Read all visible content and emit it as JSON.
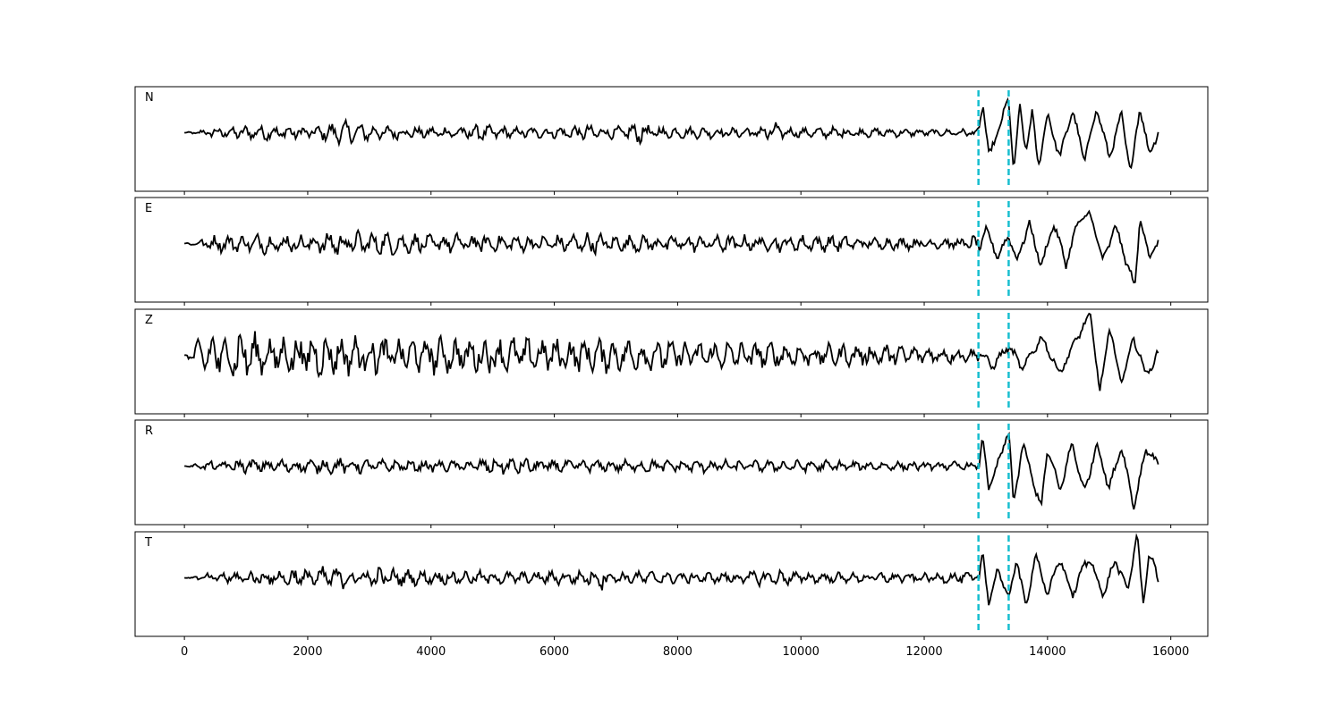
{
  "chart_data": {
    "type": "line",
    "xlim": [
      -800,
      16600
    ],
    "x_ticks": [
      0,
      2000,
      4000,
      6000,
      8000,
      10000,
      12000,
      14000,
      16000
    ],
    "x_tick_labels": [
      "0",
      "2000",
      "4000",
      "6000",
      "8000",
      "10000",
      "12000",
      "14000",
      "16000"
    ],
    "n_samples": 15800,
    "grid": false,
    "y_ticks_shown": false,
    "line_color": "#000000",
    "pick_color": "#17becf",
    "picks": [
      12880,
      13370
    ],
    "panels": [
      {
        "label": "N",
        "series": [
          {
            "x": 0,
            "y": 0.0
          },
          {
            "x": 500,
            "y": 0.1
          },
          {
            "x": 1000,
            "y": -0.12
          },
          {
            "x": 1500,
            "y": 0.15
          },
          {
            "x": 2000,
            "y": -0.1
          },
          {
            "x": 2600,
            "y": 0.2
          },
          {
            "x": 3000,
            "y": -0.15
          },
          {
            "x": 3500,
            "y": 0.12
          },
          {
            "x": 4000,
            "y": -0.1
          },
          {
            "x": 4700,
            "y": 0.15
          },
          {
            "x": 5000,
            "y": -0.12
          },
          {
            "x": 5500,
            "y": 0.1
          },
          {
            "x": 6000,
            "y": -0.1
          },
          {
            "x": 6500,
            "y": 0.15
          },
          {
            "x": 7000,
            "y": -0.1
          },
          {
            "x": 7400,
            "y": 0.2
          },
          {
            "x": 7500,
            "y": -0.15
          },
          {
            "x": 8000,
            "y": 0.1
          },
          {
            "x": 8500,
            "y": -0.1
          },
          {
            "x": 9000,
            "y": 0.08
          },
          {
            "x": 9600,
            "y": 0.2
          },
          {
            "x": 9700,
            "y": -0.1
          },
          {
            "x": 10000,
            "y": 0.08
          },
          {
            "x": 10500,
            "y": -0.1
          },
          {
            "x": 11000,
            "y": 0.08
          },
          {
            "x": 11500,
            "y": -0.08
          },
          {
            "x": 12000,
            "y": 0.06
          },
          {
            "x": 12500,
            "y": -0.06
          },
          {
            "x": 12880,
            "y": -0.08
          },
          {
            "x": 12950,
            "y": 0.7
          },
          {
            "x": 13050,
            "y": -0.55
          },
          {
            "x": 13200,
            "y": 0.05
          },
          {
            "x": 13370,
            "y": 0.75
          },
          {
            "x": 13450,
            "y": -0.85
          },
          {
            "x": 13550,
            "y": 0.55
          },
          {
            "x": 13650,
            "y": -0.4
          },
          {
            "x": 13750,
            "y": 0.45
          },
          {
            "x": 13850,
            "y": -0.75
          },
          {
            "x": 14000,
            "y": 0.4
          },
          {
            "x": 14200,
            "y": -0.55
          },
          {
            "x": 14400,
            "y": 0.5
          },
          {
            "x": 14600,
            "y": -0.6
          },
          {
            "x": 14800,
            "y": 0.55
          },
          {
            "x": 15000,
            "y": -0.55
          },
          {
            "x": 15200,
            "y": 0.4
          },
          {
            "x": 15350,
            "y": -0.9
          },
          {
            "x": 15500,
            "y": 0.6
          },
          {
            "x": 15650,
            "y": -0.5
          },
          {
            "x": 15800,
            "y": 0.05
          }
        ]
      },
      {
        "label": "E",
        "series": [
          {
            "x": 0,
            "y": 0.0
          },
          {
            "x": 500,
            "y": 0.15
          },
          {
            "x": 1000,
            "y": -0.15
          },
          {
            "x": 1500,
            "y": 0.2
          },
          {
            "x": 2000,
            "y": -0.15
          },
          {
            "x": 2500,
            "y": 0.25
          },
          {
            "x": 3000,
            "y": -0.2
          },
          {
            "x": 3500,
            "y": 0.2
          },
          {
            "x": 4000,
            "y": -0.15
          },
          {
            "x": 4500,
            "y": 0.2
          },
          {
            "x": 5000,
            "y": -0.15
          },
          {
            "x": 5500,
            "y": 0.15
          },
          {
            "x": 6000,
            "y": -0.15
          },
          {
            "x": 6500,
            "y": 0.2
          },
          {
            "x": 7000,
            "y": -0.15
          },
          {
            "x": 7500,
            "y": 0.15
          },
          {
            "x": 8000,
            "y": -0.15
          },
          {
            "x": 8500,
            "y": 0.15
          },
          {
            "x": 9000,
            "y": -0.15
          },
          {
            "x": 9500,
            "y": 0.15
          },
          {
            "x": 10000,
            "y": -0.15
          },
          {
            "x": 10500,
            "y": 0.15
          },
          {
            "x": 11000,
            "y": -0.1
          },
          {
            "x": 11500,
            "y": 0.12
          },
          {
            "x": 12000,
            "y": -0.1
          },
          {
            "x": 12500,
            "y": 0.1
          },
          {
            "x": 12880,
            "y": -0.15
          },
          {
            "x": 13000,
            "y": 0.3
          },
          {
            "x": 13200,
            "y": -0.3
          },
          {
            "x": 13370,
            "y": 0.2
          },
          {
            "x": 13500,
            "y": -0.4
          },
          {
            "x": 13700,
            "y": 0.45
          },
          {
            "x": 13900,
            "y": -0.5
          },
          {
            "x": 14100,
            "y": 0.45
          },
          {
            "x": 14300,
            "y": -0.45
          },
          {
            "x": 14500,
            "y": 0.5
          },
          {
            "x": 14700,
            "y": 0.65
          },
          {
            "x": 14900,
            "y": -0.4
          },
          {
            "x": 15100,
            "y": 0.4
          },
          {
            "x": 15300,
            "y": -0.5
          },
          {
            "x": 15420,
            "y": -0.95
          },
          {
            "x": 15500,
            "y": 0.6
          },
          {
            "x": 15650,
            "y": -0.3
          },
          {
            "x": 15800,
            "y": 0.05
          }
        ]
      },
      {
        "label": "Z",
        "series": [
          {
            "x": 0,
            "y": 0.0
          },
          {
            "x": 300,
            "y": 0.35
          },
          {
            "x": 500,
            "y": -0.45
          },
          {
            "x": 700,
            "y": 0.4
          },
          {
            "x": 900,
            "y": -0.55
          },
          {
            "x": 1200,
            "y": 0.35
          },
          {
            "x": 1500,
            "y": -0.35
          },
          {
            "x": 2000,
            "y": 0.4
          },
          {
            "x": 2500,
            "y": -0.35
          },
          {
            "x": 3000,
            "y": 0.35
          },
          {
            "x": 3500,
            "y": -0.3
          },
          {
            "x": 4000,
            "y": 0.35
          },
          {
            "x": 4500,
            "y": -0.3
          },
          {
            "x": 5000,
            "y": 0.35
          },
          {
            "x": 5500,
            "y": -0.3
          },
          {
            "x": 6000,
            "y": 0.3
          },
          {
            "x": 6500,
            "y": -0.3
          },
          {
            "x": 7000,
            "y": 0.3
          },
          {
            "x": 7500,
            "y": -0.3
          },
          {
            "x": 8000,
            "y": 0.25
          },
          {
            "x": 8500,
            "y": -0.25
          },
          {
            "x": 9000,
            "y": 0.25
          },
          {
            "x": 9500,
            "y": -0.25
          },
          {
            "x": 10000,
            "y": 0.2
          },
          {
            "x": 10500,
            "y": -0.2
          },
          {
            "x": 11000,
            "y": 0.2
          },
          {
            "x": 11500,
            "y": -0.2
          },
          {
            "x": 12000,
            "y": 0.15
          },
          {
            "x": 12500,
            "y": -0.15
          },
          {
            "x": 12880,
            "y": 0.1
          },
          {
            "x": 13100,
            "y": -0.25
          },
          {
            "x": 13370,
            "y": 0.2
          },
          {
            "x": 13600,
            "y": -0.3
          },
          {
            "x": 13900,
            "y": 0.4
          },
          {
            "x": 14200,
            "y": -0.4
          },
          {
            "x": 14500,
            "y": 0.45
          },
          {
            "x": 14700,
            "y": 0.9
          },
          {
            "x": 14850,
            "y": -0.85
          },
          {
            "x": 15000,
            "y": 0.6
          },
          {
            "x": 15200,
            "y": -0.6
          },
          {
            "x": 15400,
            "y": 0.4
          },
          {
            "x": 15600,
            "y": -0.45
          },
          {
            "x": 15800,
            "y": 0.05
          }
        ]
      },
      {
        "label": "R",
        "series": [
          {
            "x": 0,
            "y": 0.0
          },
          {
            "x": 500,
            "y": 0.1
          },
          {
            "x": 1000,
            "y": -0.12
          },
          {
            "x": 1500,
            "y": 0.12
          },
          {
            "x": 2000,
            "y": -0.12
          },
          {
            "x": 2500,
            "y": 0.15
          },
          {
            "x": 3000,
            "y": -0.12
          },
          {
            "x": 3500,
            "y": 0.1
          },
          {
            "x": 4000,
            "y": -0.1
          },
          {
            "x": 4500,
            "y": 0.1
          },
          {
            "x": 5000,
            "y": -0.15
          },
          {
            "x": 5500,
            "y": 0.15
          },
          {
            "x": 6000,
            "y": -0.12
          },
          {
            "x": 6500,
            "y": 0.1
          },
          {
            "x": 7000,
            "y": -0.1
          },
          {
            "x": 7500,
            "y": 0.12
          },
          {
            "x": 8000,
            "y": -0.1
          },
          {
            "x": 8500,
            "y": 0.12
          },
          {
            "x": 9000,
            "y": -0.1
          },
          {
            "x": 9500,
            "y": 0.1
          },
          {
            "x": 10000,
            "y": -0.1
          },
          {
            "x": 10500,
            "y": 0.1
          },
          {
            "x": 11000,
            "y": -0.08
          },
          {
            "x": 11500,
            "y": 0.08
          },
          {
            "x": 12000,
            "y": -0.08
          },
          {
            "x": 12500,
            "y": 0.08
          },
          {
            "x": 12880,
            "y": -0.05
          },
          {
            "x": 12950,
            "y": 0.6
          },
          {
            "x": 13050,
            "y": -0.5
          },
          {
            "x": 13200,
            "y": 0.05
          },
          {
            "x": 13370,
            "y": 0.8
          },
          {
            "x": 13450,
            "y": -0.85
          },
          {
            "x": 13600,
            "y": 0.5
          },
          {
            "x": 13800,
            "y": -0.5
          },
          {
            "x": 13900,
            "y": -0.9
          },
          {
            "x": 14000,
            "y": 0.4
          },
          {
            "x": 14200,
            "y": -0.55
          },
          {
            "x": 14400,
            "y": 0.5
          },
          {
            "x": 14600,
            "y": -0.6
          },
          {
            "x": 14800,
            "y": 0.5
          },
          {
            "x": 15000,
            "y": -0.5
          },
          {
            "x": 15200,
            "y": 0.45
          },
          {
            "x": 15400,
            "y": -0.9
          },
          {
            "x": 15600,
            "y": 0.4
          },
          {
            "x": 15800,
            "y": 0.05
          }
        ]
      },
      {
        "label": "T",
        "series": [
          {
            "x": 0,
            "y": 0.0
          },
          {
            "x": 500,
            "y": 0.1
          },
          {
            "x": 1000,
            "y": -0.12
          },
          {
            "x": 1500,
            "y": 0.15
          },
          {
            "x": 2000,
            "y": 0.2
          },
          {
            "x": 2500,
            "y": -0.18
          },
          {
            "x": 3000,
            "y": 0.2
          },
          {
            "x": 3500,
            "y": -0.15
          },
          {
            "x": 4000,
            "y": 0.12
          },
          {
            "x": 4500,
            "y": -0.12
          },
          {
            "x": 5000,
            "y": 0.12
          },
          {
            "x": 5500,
            "y": -0.1
          },
          {
            "x": 6000,
            "y": 0.12
          },
          {
            "x": 6500,
            "y": -0.12
          },
          {
            "x": 6900,
            "y": 0.25
          },
          {
            "x": 7000,
            "y": -0.1
          },
          {
            "x": 7500,
            "y": 0.12
          },
          {
            "x": 8000,
            "y": -0.1
          },
          {
            "x": 8500,
            "y": 0.1
          },
          {
            "x": 9000,
            "y": -0.1
          },
          {
            "x": 9500,
            "y": 0.15
          },
          {
            "x": 10000,
            "y": -0.1
          },
          {
            "x": 10500,
            "y": 0.1
          },
          {
            "x": 11000,
            "y": -0.08
          },
          {
            "x": 11500,
            "y": 0.1
          },
          {
            "x": 12000,
            "y": -0.08
          },
          {
            "x": 12500,
            "y": 0.1
          },
          {
            "x": 12880,
            "y": -0.1
          },
          {
            "x": 12950,
            "y": 0.55
          },
          {
            "x": 13050,
            "y": -0.55
          },
          {
            "x": 13200,
            "y": 0.2
          },
          {
            "x": 13370,
            "y": -0.5
          },
          {
            "x": 13500,
            "y": 0.45
          },
          {
            "x": 13650,
            "y": -0.7
          },
          {
            "x": 13800,
            "y": 0.55
          },
          {
            "x": 14000,
            "y": -0.4
          },
          {
            "x": 14200,
            "y": 0.45
          },
          {
            "x": 14400,
            "y": -0.4
          },
          {
            "x": 14600,
            "y": 0.3
          },
          {
            "x": 14700,
            "y": 0.4
          },
          {
            "x": 14900,
            "y": -0.4
          },
          {
            "x": 15100,
            "y": 0.4
          },
          {
            "x": 15300,
            "y": -0.3
          },
          {
            "x": 15450,
            "y": 0.98
          },
          {
            "x": 15550,
            "y": -0.55
          },
          {
            "x": 15650,
            "y": 0.55
          },
          {
            "x": 15800,
            "y": -0.05
          }
        ]
      }
    ]
  }
}
